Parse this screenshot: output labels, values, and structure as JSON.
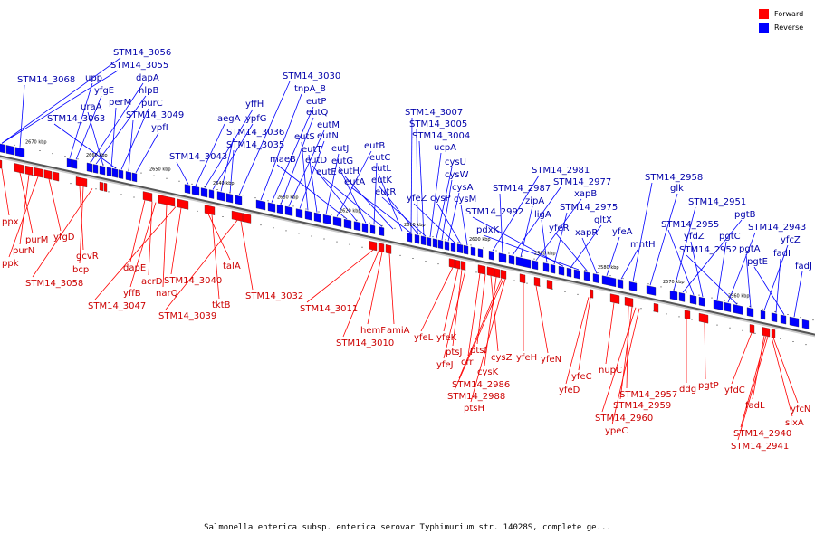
{
  "legend": {
    "forward_label": "Forward",
    "reverse_label": "Reverse",
    "forward_color": "#ff0000",
    "reverse_color": "#0000ff"
  },
  "caption": "Salmonella enterica subsp. enterica serovar Typhimurium str. 14028S, complete ge...",
  "colors": {
    "forward_label": "#cc0000",
    "reverse_label": "#0000aa",
    "forward_gene": "#ff0000",
    "reverse_gene": "#0000ff",
    "backbone": "#888888"
  },
  "kbp_ticks": [
    "2670 kbp",
    "2660 kbp",
    "2650 kbp",
    "2640 kbp",
    "2630 kbp",
    "2620 kbp",
    "2610 kbp",
    "2600 kbp",
    "2590 kbp",
    "2580 kbp",
    "2570 kbp",
    "2560 kbp"
  ],
  "reverse_genes": [
    "STM14_3056",
    "STM14_3055",
    "STM14_3068",
    "upp",
    "yfgE",
    "dapA",
    "nlpB",
    "uraA",
    "perM",
    "STM14_3063",
    "purC",
    "STM14_3049",
    "ypfI",
    "STM14_3043",
    "aegA",
    "yffH",
    "ypfG",
    "STM14_3036",
    "STM14_3035",
    "STM14_3030",
    "tnpA_8",
    "eutP",
    "eutQ",
    "eutM",
    "eutN",
    "eutS",
    "eutT",
    "eutJ",
    "eutB",
    "maeB",
    "eutD",
    "eutG",
    "eutC",
    "eutE",
    "eutH",
    "eutL",
    "eutA",
    "eutK",
    "eutR",
    "STM14_3007",
    "STM14_3005",
    "STM14_3004",
    "ucpA",
    "cysU",
    "cysW",
    "cysA",
    "yfeZ",
    "cysP",
    "cysM",
    "STM14_2981",
    "STM14_2987",
    "STM14_2977",
    "zipA",
    "xapB",
    "ligA",
    "STM14_2975",
    "STM14_2992",
    "gltX",
    "pdxK",
    "yfeR",
    "xapR",
    "yfeA",
    "mntH",
    "STM14_2958",
    "glk",
    "STM14_2951",
    "pgtB",
    "STM14_2955",
    "yfdZ",
    "pgtC",
    "STM14_2943",
    "STM14_2952",
    "pgtA",
    "yfcZ",
    "fadI",
    "pgtE",
    "fadJ"
  ],
  "forward_genes": [
    "ppx",
    "purM",
    "purN",
    "ppk",
    "yfgD",
    "gcvR",
    "bcp",
    "STM14_3058",
    "dapE",
    "acrD",
    "yffB",
    "narQ",
    "STM14_3047",
    "STM14_3040",
    "talA",
    "tktB",
    "STM14_3039",
    "STM14_3032",
    "STM14_3011",
    "hemF",
    "amiA",
    "STM14_3010",
    "yfeL",
    "yfeK",
    "ptsJ",
    "yfeJ",
    "crr",
    "ptsI",
    "cysZ",
    "cysK",
    "yfeH",
    "yfeN",
    "yfeC",
    "yfeD",
    "STM14_2986",
    "STM14_2988",
    "ptsH",
    "nupC",
    "STM14_2957",
    "STM14_2959",
    "STM14_2960",
    "ypeC",
    "ddg",
    "pgtP",
    "yfdC",
    "fadL",
    "yfcN",
    "sixA",
    "STM14_2940",
    "STM14_2941"
  ]
}
